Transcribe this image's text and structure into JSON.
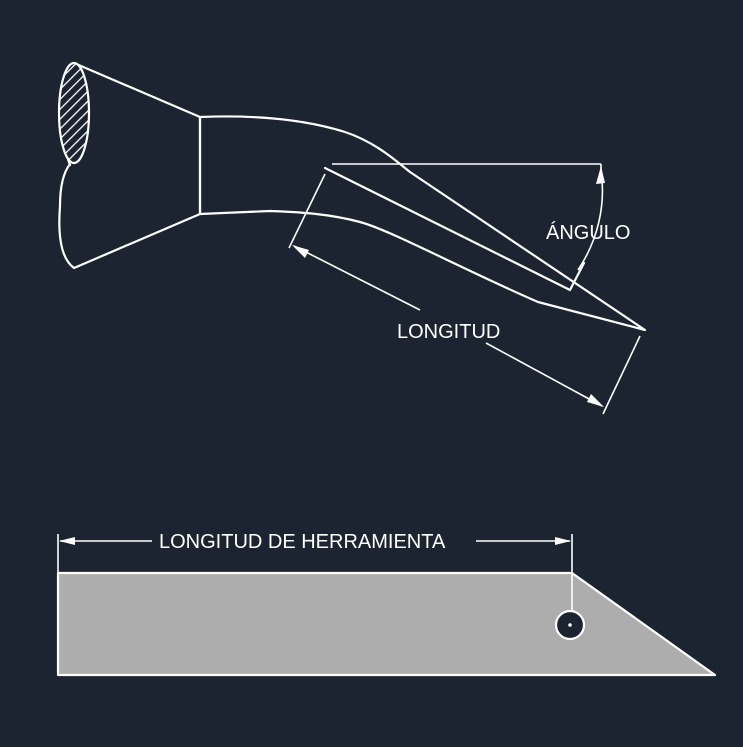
{
  "colors": {
    "background": "#1b2430",
    "tool_fill": "#323232",
    "blade_fill": "#adadad",
    "line": "#ffffff"
  },
  "labels": {
    "angle": "ÁNGULO",
    "length": "LONGITUD",
    "tool_length": "LONGITUD DE HERRAMIENTA"
  }
}
